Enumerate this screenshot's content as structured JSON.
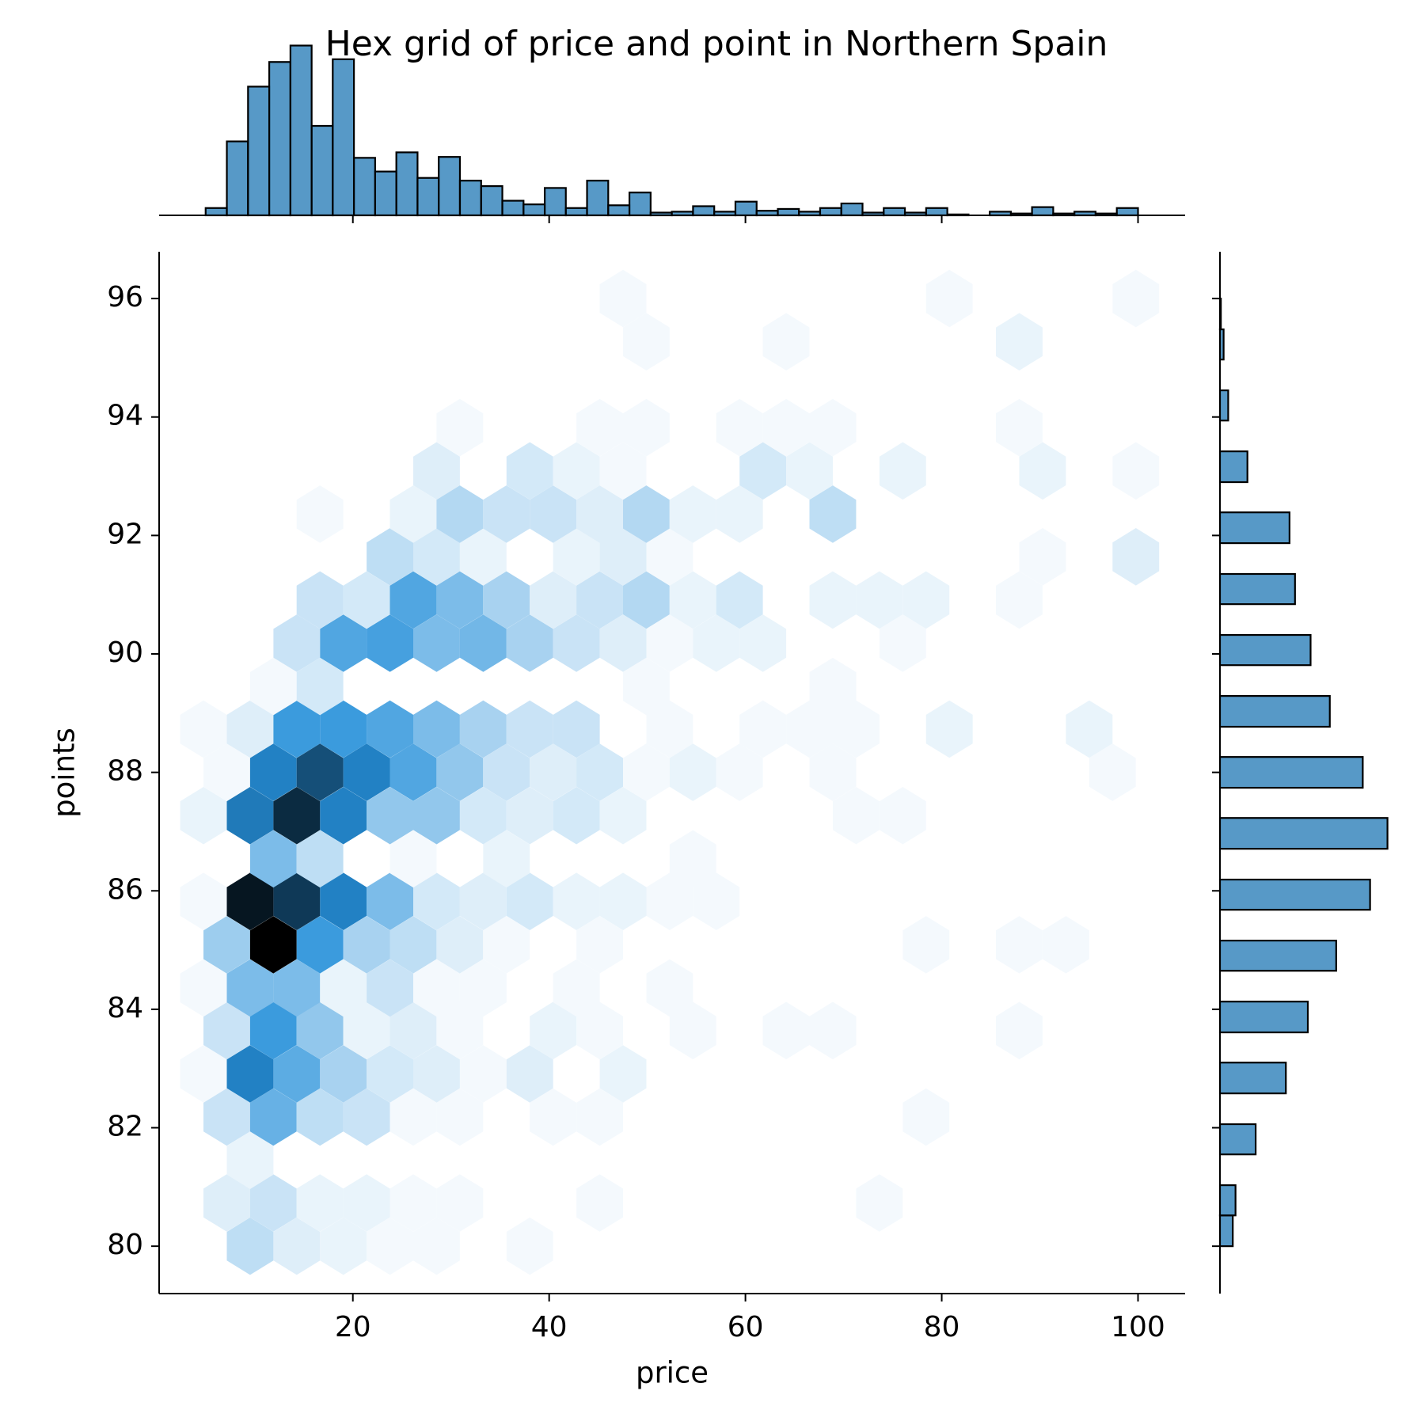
{
  "chart_data": [
    {
      "type": "hexbin",
      "title": "Hex grid of price and point in Northern Spain",
      "x_label": "price",
      "y_label": "points",
      "color": "#1f77b4",
      "xlim": [
        0.26,
        104.8
      ],
      "ylim": [
        79.2,
        96.79
      ],
      "xticks": [
        20,
        40,
        60,
        80,
        100
      ],
      "yticks": [
        80,
        82,
        84,
        86,
        88,
        90,
        92,
        94,
        96
      ],
      "x": [
        9.53,
        14.28,
        19.03,
        23.78,
        28.53,
        38.03,
        7.15,
        11.9,
        16.65,
        21.4,
        26.15,
        30.9,
        45.15,
        73.65,
        9.53,
        7.15,
        11.9,
        16.65,
        21.4,
        26.15,
        30.9,
        40.4,
        45.15,
        78.4,
        4.78,
        9.53,
        14.28,
        19.03,
        23.78,
        28.53,
        33.28,
        38.03,
        47.53,
        7.15,
        11.9,
        16.65,
        21.4,
        26.15,
        30.9,
        40.4,
        45.15,
        54.65,
        64.15,
        68.9,
        87.9,
        4.78,
        9.53,
        14.28,
        19.03,
        23.78,
        28.53,
        33.28,
        42.78,
        52.28,
        7.15,
        11.9,
        16.65,
        21.4,
        26.15,
        30.9,
        35.65,
        45.15,
        78.4,
        87.9,
        92.65,
        4.78,
        9.53,
        14.28,
        19.03,
        23.78,
        28.53,
        33.28,
        38.03,
        42.78,
        47.53,
        52.28,
        57.03,
        11.9,
        16.65,
        26.15,
        35.65,
        54.65,
        4.78,
        9.53,
        14.28,
        19.03,
        23.78,
        28.53,
        33.28,
        38.03,
        42.78,
        47.53,
        71.28,
        76.03,
        7.15,
        11.9,
        16.65,
        21.4,
        26.15,
        30.9,
        35.65,
        40.4,
        45.15,
        49.9,
        54.65,
        59.4,
        68.9,
        97.4,
        4.78,
        9.53,
        14.28,
        19.03,
        23.78,
        28.53,
        33.28,
        38.03,
        42.78,
        52.28,
        61.78,
        66.53,
        71.28,
        80.78,
        95.03,
        11.9,
        16.65,
        49.9,
        68.9,
        14.28,
        19.03,
        23.78,
        28.53,
        33.28,
        38.03,
        42.78,
        47.53,
        52.28,
        57.03,
        61.78,
        76.03,
        16.65,
        21.4,
        26.15,
        30.9,
        35.65,
        40.4,
        45.15,
        49.9,
        54.65,
        59.4,
        68.9,
        73.65,
        78.4,
        87.9,
        23.78,
        28.53,
        33.28,
        42.78,
        47.53,
        52.28,
        90.28,
        99.78,
        16.65,
        26.15,
        30.9,
        35.65,
        40.4,
        45.15,
        49.9,
        54.65,
        59.4,
        68.9,
        28.53,
        38.03,
        42.78,
        47.53,
        61.78,
        66.53,
        76.03,
        90.28,
        99.78,
        30.9,
        45.15,
        49.9,
        59.4,
        64.15,
        68.9,
        87.9,
        49.9,
        64.15,
        87.9,
        47.53,
        80.78,
        99.78
      ],
      "y": [
        80,
        80,
        80,
        80,
        80,
        80,
        80.73,
        80.73,
        80.73,
        80.73,
        80.73,
        80.73,
        80.73,
        80.73,
        81.45,
        82.18,
        82.18,
        82.18,
        82.18,
        82.18,
        82.18,
        82.18,
        82.18,
        82.18,
        82.91,
        82.91,
        82.91,
        82.91,
        82.91,
        82.91,
        82.91,
        82.91,
        82.91,
        83.64,
        83.64,
        83.64,
        83.64,
        83.64,
        83.64,
        83.64,
        83.64,
        83.64,
        83.64,
        83.64,
        83.64,
        84.36,
        84.36,
        84.36,
        84.36,
        84.36,
        84.36,
        84.36,
        84.36,
        84.36,
        85.09,
        85.09,
        85.09,
        85.09,
        85.09,
        85.09,
        85.09,
        85.09,
        85.09,
        85.09,
        85.09,
        85.82,
        85.82,
        85.82,
        85.82,
        85.82,
        85.82,
        85.82,
        85.82,
        85.82,
        85.82,
        85.82,
        85.82,
        86.54,
        86.54,
        86.54,
        86.54,
        86.54,
        87.27,
        87.27,
        87.27,
        87.27,
        87.27,
        87.27,
        87.27,
        87.27,
        87.27,
        87.27,
        87.27,
        87.27,
        88,
        88,
        88,
        88,
        88,
        88,
        88,
        88,
        88,
        88,
        88,
        88,
        88,
        88,
        88.73,
        88.73,
        88.73,
        88.73,
        88.73,
        88.73,
        88.73,
        88.73,
        88.73,
        88.73,
        88.73,
        88.73,
        88.73,
        88.73,
        88.73,
        89.45,
        89.45,
        89.45,
        89.45,
        90.18,
        90.18,
        90.18,
        90.18,
        90.18,
        90.18,
        90.18,
        90.18,
        90.18,
        90.18,
        90.18,
        90.18,
        90.91,
        90.91,
        90.91,
        90.91,
        90.91,
        90.91,
        90.91,
        90.91,
        90.91,
        90.91,
        90.91,
        90.91,
        90.91,
        90.91,
        91.64,
        91.64,
        91.64,
        91.64,
        91.64,
        91.64,
        91.64,
        91.64,
        92.36,
        92.36,
        92.36,
        92.36,
        92.36,
        92.36,
        92.36,
        92.36,
        92.36,
        92.36,
        93.09,
        93.09,
        93.09,
        93.09,
        93.09,
        93.09,
        93.09,
        93.09,
        93.09,
        93.82,
        93.82,
        93.82,
        93.82,
        93.82,
        93.82,
        93.82,
        95.27,
        95.27,
        95.27,
        96,
        96,
        96
      ],
      "values": [
        6,
        3,
        2,
        1,
        1,
        1,
        3,
        5,
        2,
        2,
        1,
        1,
        1,
        1,
        2,
        5,
        14,
        6,
        5,
        1,
        1,
        1,
        1,
        1,
        1,
        22,
        15,
        8,
        4,
        3,
        1,
        3,
        2,
        5,
        18,
        10,
        2,
        3,
        1,
        2,
        1,
        1,
        1,
        1,
        1,
        1,
        12,
        12,
        2,
        5,
        1,
        1,
        1,
        1,
        9,
        40,
        18,
        8,
        6,
        3,
        1,
        1,
        1,
        1,
        1,
        1,
        37,
        32,
        22,
        12,
        4,
        3,
        4,
        2,
        2,
        1,
        1,
        12,
        6,
        1,
        2,
        1,
        2,
        23,
        34,
        22,
        10,
        10,
        4,
        3,
        4,
        2,
        1,
        1,
        1,
        22,
        29,
        22,
        16,
        10,
        5,
        3,
        4,
        1,
        2,
        1,
        1,
        1,
        1,
        3,
        18,
        18,
        16,
        12,
        8,
        5,
        5,
        1,
        1,
        1,
        1,
        2,
        2,
        1,
        4,
        1,
        1,
        5,
        16,
        17,
        12,
        13,
        8,
        5,
        3,
        1,
        2,
        2,
        1,
        5,
        4,
        16,
        12,
        8,
        3,
        5,
        7,
        2,
        4,
        2,
        2,
        2,
        1,
        6,
        4,
        2,
        2,
        3,
        1,
        1,
        3,
        1,
        2,
        7,
        5,
        5,
        3,
        7,
        2,
        2,
        6,
        3,
        4,
        2,
        1,
        4,
        2,
        2,
        2,
        1,
        1,
        1,
        1,
        1,
        1,
        1,
        1,
        1,
        1,
        2,
        1,
        1,
        1
      ]
    },
    {
      "type": "histogram",
      "orientation": "vertical",
      "color": "#1f77b4",
      "ylim": [
        0,
        196
      ],
      "bins": [
        5,
        7.16,
        9.32,
        11.48,
        13.64,
        15.8,
        17.95,
        20.11,
        22.27,
        24.43,
        26.59,
        28.75,
        30.91,
        33.07,
        35.23,
        37.39,
        39.55,
        41.7,
        43.86,
        46.02,
        48.18,
        50.34,
        52.5,
        54.66,
        56.82,
        58.98,
        61.14,
        63.3,
        65.45,
        67.61,
        69.77,
        71.93,
        74.09,
        76.25,
        78.41,
        80.57,
        82.73,
        84.89,
        87.05,
        89.2,
        91.36,
        93.52,
        95.68,
        97.84,
        100
      ],
      "values": [
        8,
        81,
        141,
        168,
        186,
        98,
        171,
        63,
        48,
        69,
        41,
        64,
        38,
        32,
        16,
        12,
        30,
        8,
        38,
        11,
        25,
        3,
        4,
        10,
        4,
        15,
        5,
        7,
        4,
        8,
        13,
        3,
        8,
        3,
        8,
        1,
        0,
        4,
        2,
        9,
        2,
        4,
        2,
        8
      ]
    },
    {
      "type": "histogram",
      "orientation": "horizontal",
      "color": "#1f77b4",
      "xlim": [
        0,
        192
      ],
      "bins": [
        80,
        80.52,
        81.03,
        81.55,
        82.06,
        82.58,
        83.1,
        83.61,
        84.13,
        84.65,
        85.16,
        85.68,
        86.19,
        86.71,
        87.23,
        87.74,
        88.26,
        88.77,
        89.29,
        89.81,
        90.32,
        90.84,
        91.35,
        91.87,
        92.39,
        92.9,
        93.42,
        93.94,
        94.45,
        94.97,
        95.48,
        96
      ],
      "values": [
        14,
        17,
        0,
        39,
        0,
        72,
        0,
        96,
        0,
        127,
        0,
        164,
        0,
        183,
        0,
        156,
        0,
        120,
        0,
        99,
        0,
        82,
        0,
        76,
        0,
        30,
        0,
        9,
        0,
        4,
        1
      ]
    }
  ]
}
